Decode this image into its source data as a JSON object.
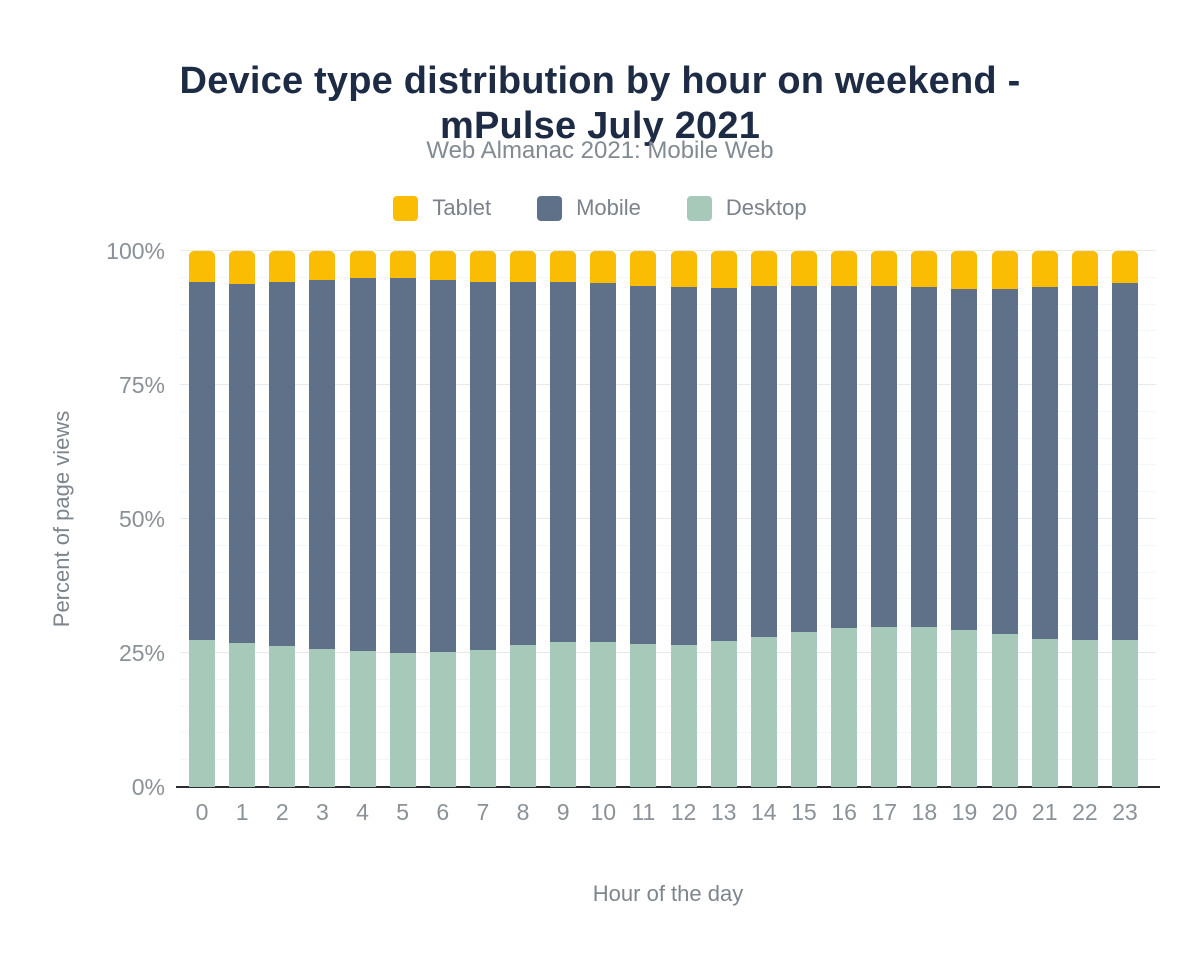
{
  "header": {
    "title": "Device type distribution by hour on weekend - mPulse July 2021",
    "title_line1": "Device type distribution by hour on weekend -",
    "title_line2": "mPulse July 2021",
    "subtitle": "Web Almanac 2021: Mobile Web"
  },
  "legend": [
    {
      "label": "Tablet",
      "color": "#FBBC04"
    },
    {
      "label": "Mobile",
      "color": "#5F7189"
    },
    {
      "label": "Desktop",
      "color": "#A7C9B9"
    }
  ],
  "colors": {
    "title": "#1d2b45",
    "muted_text": "#828a92",
    "tick_text": "#8a9199",
    "axis_line": "#292c31",
    "tablet": "#FBBC04",
    "mobile": "#5F7189",
    "desktop": "#A7C9B9"
  },
  "chart_data": {
    "type": "bar",
    "stacked": true,
    "title": "Device type distribution by hour on weekend - mPulse July 2021",
    "subtitle": "Web Almanac 2021: Mobile Web",
    "xlabel": "Hour of the day",
    "ylabel": "Percent of page views",
    "unit": "%",
    "ylim": [
      0,
      100
    ],
    "grid": "horizontal; major gridlines every 25%, faint minor gridlines every 5%",
    "legend_position": "top",
    "legend_order": [
      "Tablet",
      "Mobile",
      "Desktop"
    ],
    "categories": [
      0,
      1,
      2,
      3,
      4,
      5,
      6,
      7,
      8,
      9,
      10,
      11,
      12,
      13,
      14,
      15,
      16,
      17,
      18,
      19,
      20,
      21,
      22,
      23
    ],
    "y_ticks": [
      {
        "label": "0%",
        "value": 0
      },
      {
        "label": "25%",
        "value": 25
      },
      {
        "label": "50%",
        "value": 50
      },
      {
        "label": "75%",
        "value": 75
      },
      {
        "label": "100%",
        "value": 100
      }
    ],
    "series": [
      {
        "name": "Desktop",
        "color": "#A7C9B9",
        "values": [
          27.4,
          26.9,
          26.4,
          25.7,
          25.4,
          25.0,
          25.1,
          25.6,
          26.5,
          27.0,
          27.1,
          26.6,
          26.5,
          27.2,
          27.9,
          28.9,
          29.7,
          29.9,
          29.9,
          29.3,
          28.5,
          27.7,
          27.4,
          27.4
        ]
      },
      {
        "name": "Mobile",
        "color": "#5F7189",
        "values": [
          66.8,
          67.0,
          67.8,
          68.9,
          69.5,
          70.0,
          69.5,
          68.6,
          67.7,
          67.2,
          66.9,
          66.9,
          66.7,
          65.9,
          65.5,
          64.5,
          63.8,
          63.6,
          63.3,
          63.6,
          64.4,
          65.5,
          66.1,
          66.6
        ]
      },
      {
        "name": "Tablet",
        "color": "#FBBC04",
        "values": [
          5.8,
          6.1,
          5.8,
          5.4,
          5.1,
          5.0,
          5.4,
          5.8,
          5.8,
          5.8,
          6.0,
          6.5,
          6.8,
          6.9,
          6.6,
          6.6,
          6.5,
          6.5,
          6.8,
          7.1,
          7.1,
          6.8,
          6.5,
          6.0
        ]
      }
    ]
  }
}
